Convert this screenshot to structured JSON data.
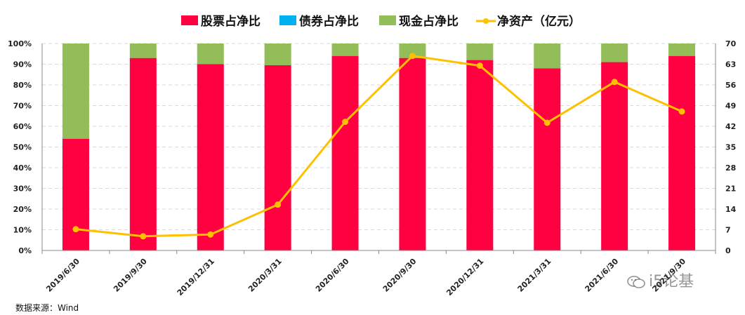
{
  "legend": {
    "items": [
      {
        "label": "股票占净比",
        "color": "#ff0040",
        "kind": "bar"
      },
      {
        "label": "债券占净比",
        "color": "#00b0f0",
        "kind": "bar"
      },
      {
        "label": "现金占净比",
        "color": "#92bd58",
        "kind": "bar"
      },
      {
        "label": "净资产（亿元）",
        "color": "#ffc000",
        "kind": "line"
      }
    ]
  },
  "source_label": "数据来源：Wind",
  "watermark_text": "i5论基",
  "chart_data": {
    "type": "bar",
    "stacked": true,
    "categories": [
      "2019/6/30",
      "2019/9/30",
      "2019/12/31",
      "2020/3/31",
      "2020/6/30",
      "2020/9/30",
      "2020/12/31",
      "2021/3/31",
      "2021/6/30",
      "2021/9/30"
    ],
    "series": [
      {
        "name": "股票占净比",
        "axis": "left",
        "color": "#ff0040",
        "values": [
          54,
          93,
          90,
          89.5,
          94,
          93,
          92,
          88,
          91,
          94
        ]
      },
      {
        "name": "债券占净比",
        "axis": "left",
        "color": "#00b0f0",
        "values": [
          0,
          0,
          0,
          0,
          0,
          0,
          0,
          0,
          0,
          0
        ]
      },
      {
        "name": "现金占净比",
        "axis": "left",
        "color": "#92bd58",
        "values": [
          46,
          7,
          10,
          10.5,
          6,
          7,
          8,
          12,
          9,
          6
        ]
      },
      {
        "name": "净资产（亿元）",
        "axis": "right",
        "type": "line",
        "color": "#ffc000",
        "values": [
          7.2,
          4.8,
          5.4,
          15.5,
          43.5,
          65.8,
          62.5,
          43.2,
          57,
          47
        ]
      }
    ],
    "ylim_left": [
      0,
      100
    ],
    "yticks_left": [
      "0%",
      "10%",
      "20%",
      "30%",
      "40%",
      "50%",
      "60%",
      "70%",
      "80%",
      "90%",
      "100%"
    ],
    "ylim_right": [
      0,
      70
    ],
    "yticks_right": [
      "0",
      "7",
      "14",
      "21",
      "28",
      "35",
      "42",
      "49",
      "56",
      "63",
      "70"
    ],
    "grid": true,
    "legend_position": "top"
  }
}
